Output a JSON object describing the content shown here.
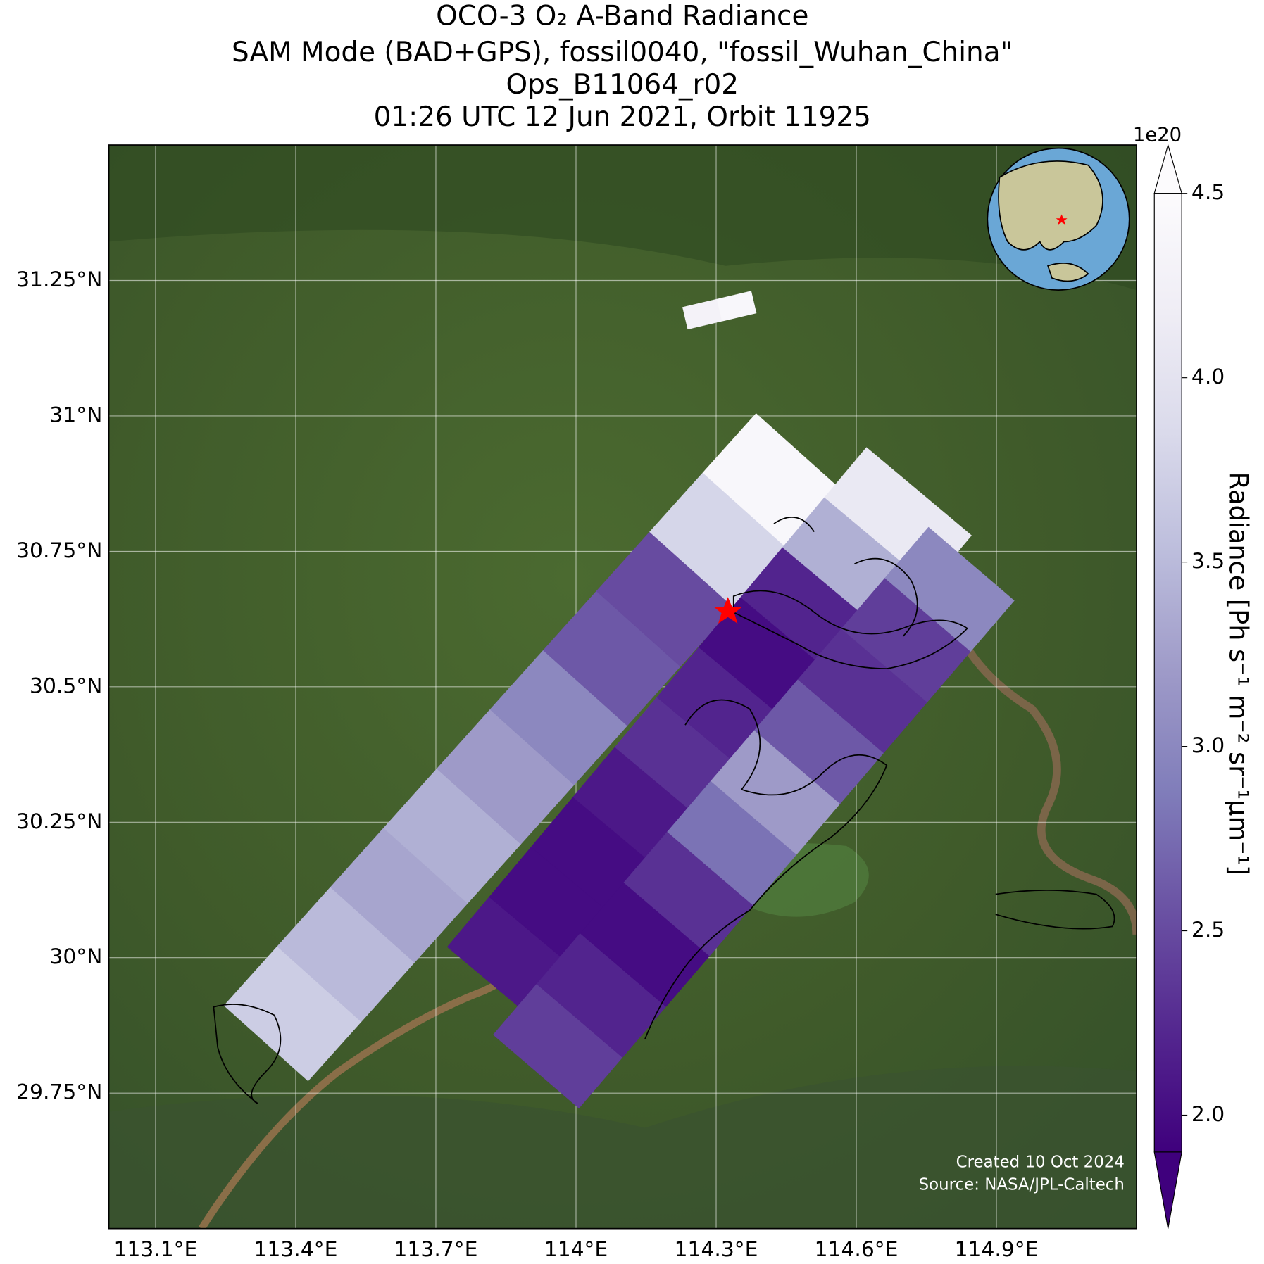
{
  "chart_data": {
    "type": "swath_map",
    "title": [
      "OCO-3 O₂ A-Band Radiance",
      "SAM Mode (BAD+GPS), fossil0040, \"fossil_Wuhan_China\"",
      "Ops_B11064_r02",
      "01:26 UTC 12 Jun 2021, Orbit 11925"
    ],
    "xlim": [
      113.0,
      115.2
    ],
    "ylim": [
      29.5,
      31.5
    ],
    "xticks": [
      {
        "value": 113.1,
        "label": "113.1°E"
      },
      {
        "value": 113.4,
        "label": "113.4°E"
      },
      {
        "value": 113.7,
        "label": "113.7°E"
      },
      {
        "value": 114.0,
        "label": "114°E"
      },
      {
        "value": 114.3,
        "label": "114.3°E"
      },
      {
        "value": 114.6,
        "label": "114.6°E"
      },
      {
        "value": 114.9,
        "label": "114.9°E"
      }
    ],
    "yticks": [
      {
        "value": 29.75,
        "label": "29.75°N"
      },
      {
        "value": 30.0,
        "label": "30°N"
      },
      {
        "value": 30.25,
        "label": "30.25°N"
      },
      {
        "value": 30.5,
        "label": "30.5°N"
      },
      {
        "value": 30.75,
        "label": "30.75°N"
      },
      {
        "value": 31.0,
        "label": "31°N"
      },
      {
        "value": 31.25,
        "label": "31.25°N"
      }
    ],
    "grid": true,
    "swaths": [
      [
        3.7,
        3.5,
        3.3,
        3.4,
        3.2,
        3.0,
        2.6,
        2.5,
        3.8,
        4.4
      ],
      [
        2.1,
        2.0,
        2.0,
        2.1,
        2.3,
        2.2,
        2.0,
        2.2,
        3.4,
        4.1
      ],
      [
        2.4,
        2.2,
        2.0,
        2.3,
        2.8,
        3.2,
        2.6,
        2.3,
        2.4,
        3.0
      ],
      [
        4.3,
        4.4
      ]
    ],
    "colorbar": {
      "label": "Radiance [Ph s⁻¹ m⁻² sr⁻¹μm⁻¹]",
      "scale_label": "1e20",
      "clim": [
        1.9,
        4.5
      ],
      "ticks": [
        {
          "value": 2,
          "label": "2.0"
        },
        2.5,
        {
          "value": 3,
          "label": "3.0"
        },
        3.5,
        {
          "value": 4,
          "label": "4.0"
        },
        4.5
      ],
      "colormap": [
        "#3f007d",
        "#54278f",
        "#6a51a3",
        "#807dba",
        "#9e9ac8",
        "#bcbddc",
        "#dadaeb",
        "#efedf5",
        "#fcfbfd"
      ]
    },
    "credits": [
      "Created 10 Oct 2024",
      "Source: NASA/JPL-Caltech"
    ]
  }
}
